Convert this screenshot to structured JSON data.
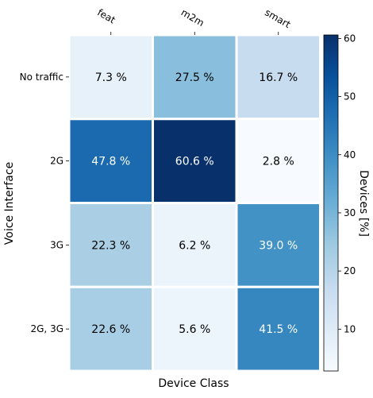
{
  "chart_data": {
    "type": "heatmap",
    "x_categories": [
      "feat",
      "m2m",
      "smart"
    ],
    "y_categories": [
      "No traffic",
      "2G",
      "3G",
      "2G, 3G"
    ],
    "values": [
      [
        7.3,
        27.5,
        16.7
      ],
      [
        47.8,
        60.6,
        2.8
      ],
      [
        22.3,
        6.2,
        39.0
      ],
      [
        22.6,
        5.6,
        41.5
      ]
    ],
    "cell_labels": [
      [
        "7.3 %",
        "27.5 %",
        "16.7 %"
      ],
      [
        "47.8 %",
        "60.6 %",
        "2.8 %"
      ],
      [
        "22.3 %",
        "6.2 %",
        "39.0 %"
      ],
      [
        "22.6 %",
        "5.6 %",
        "41.5 %"
      ]
    ],
    "xlabel": "Device Class",
    "ylabel": "Voice Interface",
    "colorbar": {
      "label": "Devices [%]",
      "range": [
        2.8,
        60.6
      ],
      "ticks": [
        10,
        20,
        30,
        40,
        50,
        60
      ],
      "tick_labels": [
        "10",
        "20",
        "30",
        "40",
        "50",
        "60"
      ],
      "colormap": "Blues"
    },
    "x_tick_position": "top"
  }
}
